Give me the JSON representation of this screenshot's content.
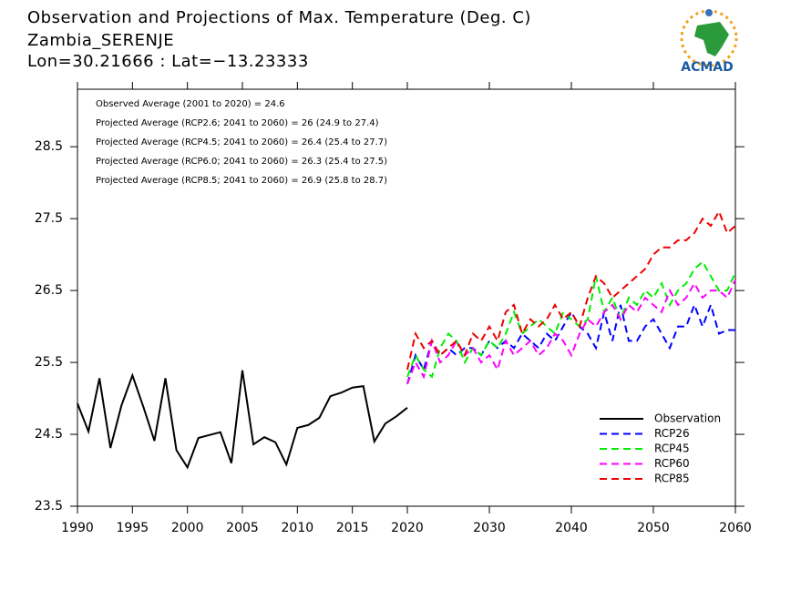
{
  "logo_text": "ACMAD",
  "chart_data": [
    {
      "type": "line",
      "title": "Observation and Projections of Max. Temperature (Deg. C)",
      "subtitle": "Zambia_SERENJE",
      "location": "Lon=30.21666 : Lat=−13.23333",
      "x": [
        1990,
        1991,
        1992,
        1993,
        1994,
        1995,
        1996,
        1997,
        1998,
        1999,
        2000,
        2001,
        2002,
        2003,
        2004,
        2005,
        2006,
        2007,
        2008,
        2009,
        2010,
        2011,
        2012,
        2013,
        2014,
        2015,
        2016,
        2017,
        2018,
        2019,
        2020
      ],
      "series": [
        {
          "name": "Observation",
          "color": "#000000",
          "linestyle": "solid",
          "values": [
            24.93,
            24.54,
            25.28,
            24.31,
            24.9,
            25.32,
            24.88,
            24.41,
            25.28,
            24.28,
            24.04,
            24.45,
            24.49,
            24.53,
            24.1,
            25.39,
            24.36,
            24.46,
            24.39,
            24.08,
            24.59,
            24.63,
            24.73,
            25.03,
            25.08,
            25.15,
            25.17,
            24.4,
            24.65,
            24.75,
            24.87
          ]
        }
      ],
      "xlim": [
        1990,
        2020
      ],
      "xticks": [
        1990,
        1995,
        2000,
        2005,
        2010,
        2015,
        2020
      ],
      "ylim": [
        23.5,
        29.3
      ],
      "yticks": [
        23.5,
        24.5,
        25.5,
        26.5,
        27.5,
        28.5
      ]
    },
    {
      "type": "line",
      "annotations": [
        "Observed Average (2001 to 2020) = 24.6",
        "Projected Average (RCP2.6; 2041 to 2060) = 26 (24.9 to 27.4)",
        "Projected Average (RCP4.5; 2041 to 2060) = 26.4 (25.4 to 27.7)",
        "Projected Average (RCP6.0; 2041 to 2060) = 26.3 (25.4 to 27.5)",
        "Projected Average (RCP8.5; 2041 to 2060) = 26.9 (25.8 to 28.7)"
      ],
      "x": [
        2020,
        2021,
        2022,
        2023,
        2024,
        2025,
        2026,
        2027,
        2028,
        2029,
        2030,
        2031,
        2032,
        2033,
        2034,
        2035,
        2036,
        2037,
        2038,
        2039,
        2040,
        2041,
        2042,
        2043,
        2044,
        2045,
        2046,
        2047,
        2048,
        2049,
        2050,
        2051,
        2052,
        2053,
        2054,
        2055,
        2056,
        2057,
        2058,
        2059,
        2060
      ],
      "series": [
        {
          "name": "RCP26",
          "color": "#0000ff",
          "linestyle": "dashed",
          "values": [
            25.2,
            25.6,
            25.4,
            25.8,
            25.6,
            25.7,
            25.6,
            25.7,
            25.7,
            25.6,
            25.8,
            25.7,
            25.8,
            25.7,
            25.9,
            25.8,
            25.7,
            25.9,
            25.8,
            26.0,
            26.2,
            26.0,
            25.9,
            25.7,
            26.2,
            25.8,
            26.3,
            25.8,
            25.8,
            26.0,
            26.1,
            25.9,
            25.7,
            26.0,
            26.0,
            26.3,
            26.0,
            26.3,
            25.9,
            25.95,
            25.95
          ]
        },
        {
          "name": "RCP45",
          "color": "#00ee00",
          "linestyle": "dashed",
          "values": [
            25.3,
            25.6,
            25.4,
            25.3,
            25.7,
            25.9,
            25.8,
            25.5,
            25.7,
            25.6,
            25.8,
            25.7,
            25.9,
            26.2,
            25.9,
            26.0,
            26.1,
            26.0,
            25.9,
            26.2,
            26.1,
            26.0,
            26.1,
            26.7,
            26.2,
            26.4,
            26.1,
            26.4,
            26.3,
            26.5,
            26.4,
            26.6,
            26.3,
            26.5,
            26.6,
            26.8,
            26.9,
            26.7,
            26.5,
            26.5,
            26.75
          ]
        },
        {
          "name": "RCP60",
          "color": "#ff00ff",
          "linestyle": "dashed",
          "values": [
            25.2,
            25.5,
            25.3,
            25.8,
            25.5,
            25.6,
            25.8,
            25.6,
            25.7,
            25.5,
            25.6,
            25.4,
            25.8,
            25.6,
            25.7,
            25.8,
            25.6,
            25.7,
            25.9,
            25.8,
            25.6,
            25.9,
            26.1,
            26.0,
            26.2,
            26.3,
            26.1,
            26.3,
            26.2,
            26.4,
            26.3,
            26.2,
            26.5,
            26.3,
            26.4,
            26.6,
            26.4,
            26.5,
            26.5,
            26.4,
            26.65
          ]
        },
        {
          "name": "RCP85",
          "color": "#ee0000",
          "linestyle": "dashed",
          "values": [
            25.4,
            25.9,
            25.7,
            25.8,
            25.6,
            25.7,
            25.8,
            25.6,
            25.9,
            25.8,
            26.0,
            25.8,
            26.2,
            26.3,
            25.9,
            26.1,
            26.0,
            26.1,
            26.3,
            26.1,
            26.2,
            26.0,
            26.4,
            26.7,
            26.6,
            26.4,
            26.5,
            26.6,
            26.7,
            26.8,
            27.0,
            27.1,
            27.1,
            27.2,
            27.2,
            27.3,
            27.5,
            27.4,
            27.6,
            27.3,
            27.4
          ]
        }
      ],
      "xlim": [
        2020,
        2060
      ],
      "xticks": [
        2030,
        2040,
        2050,
        2060
      ],
      "ylim": [
        23.5,
        29.3
      ],
      "yticks": [
        23.5,
        24.5,
        25.5,
        26.5,
        27.5,
        28.5
      ],
      "legend": "lower right"
    }
  ]
}
